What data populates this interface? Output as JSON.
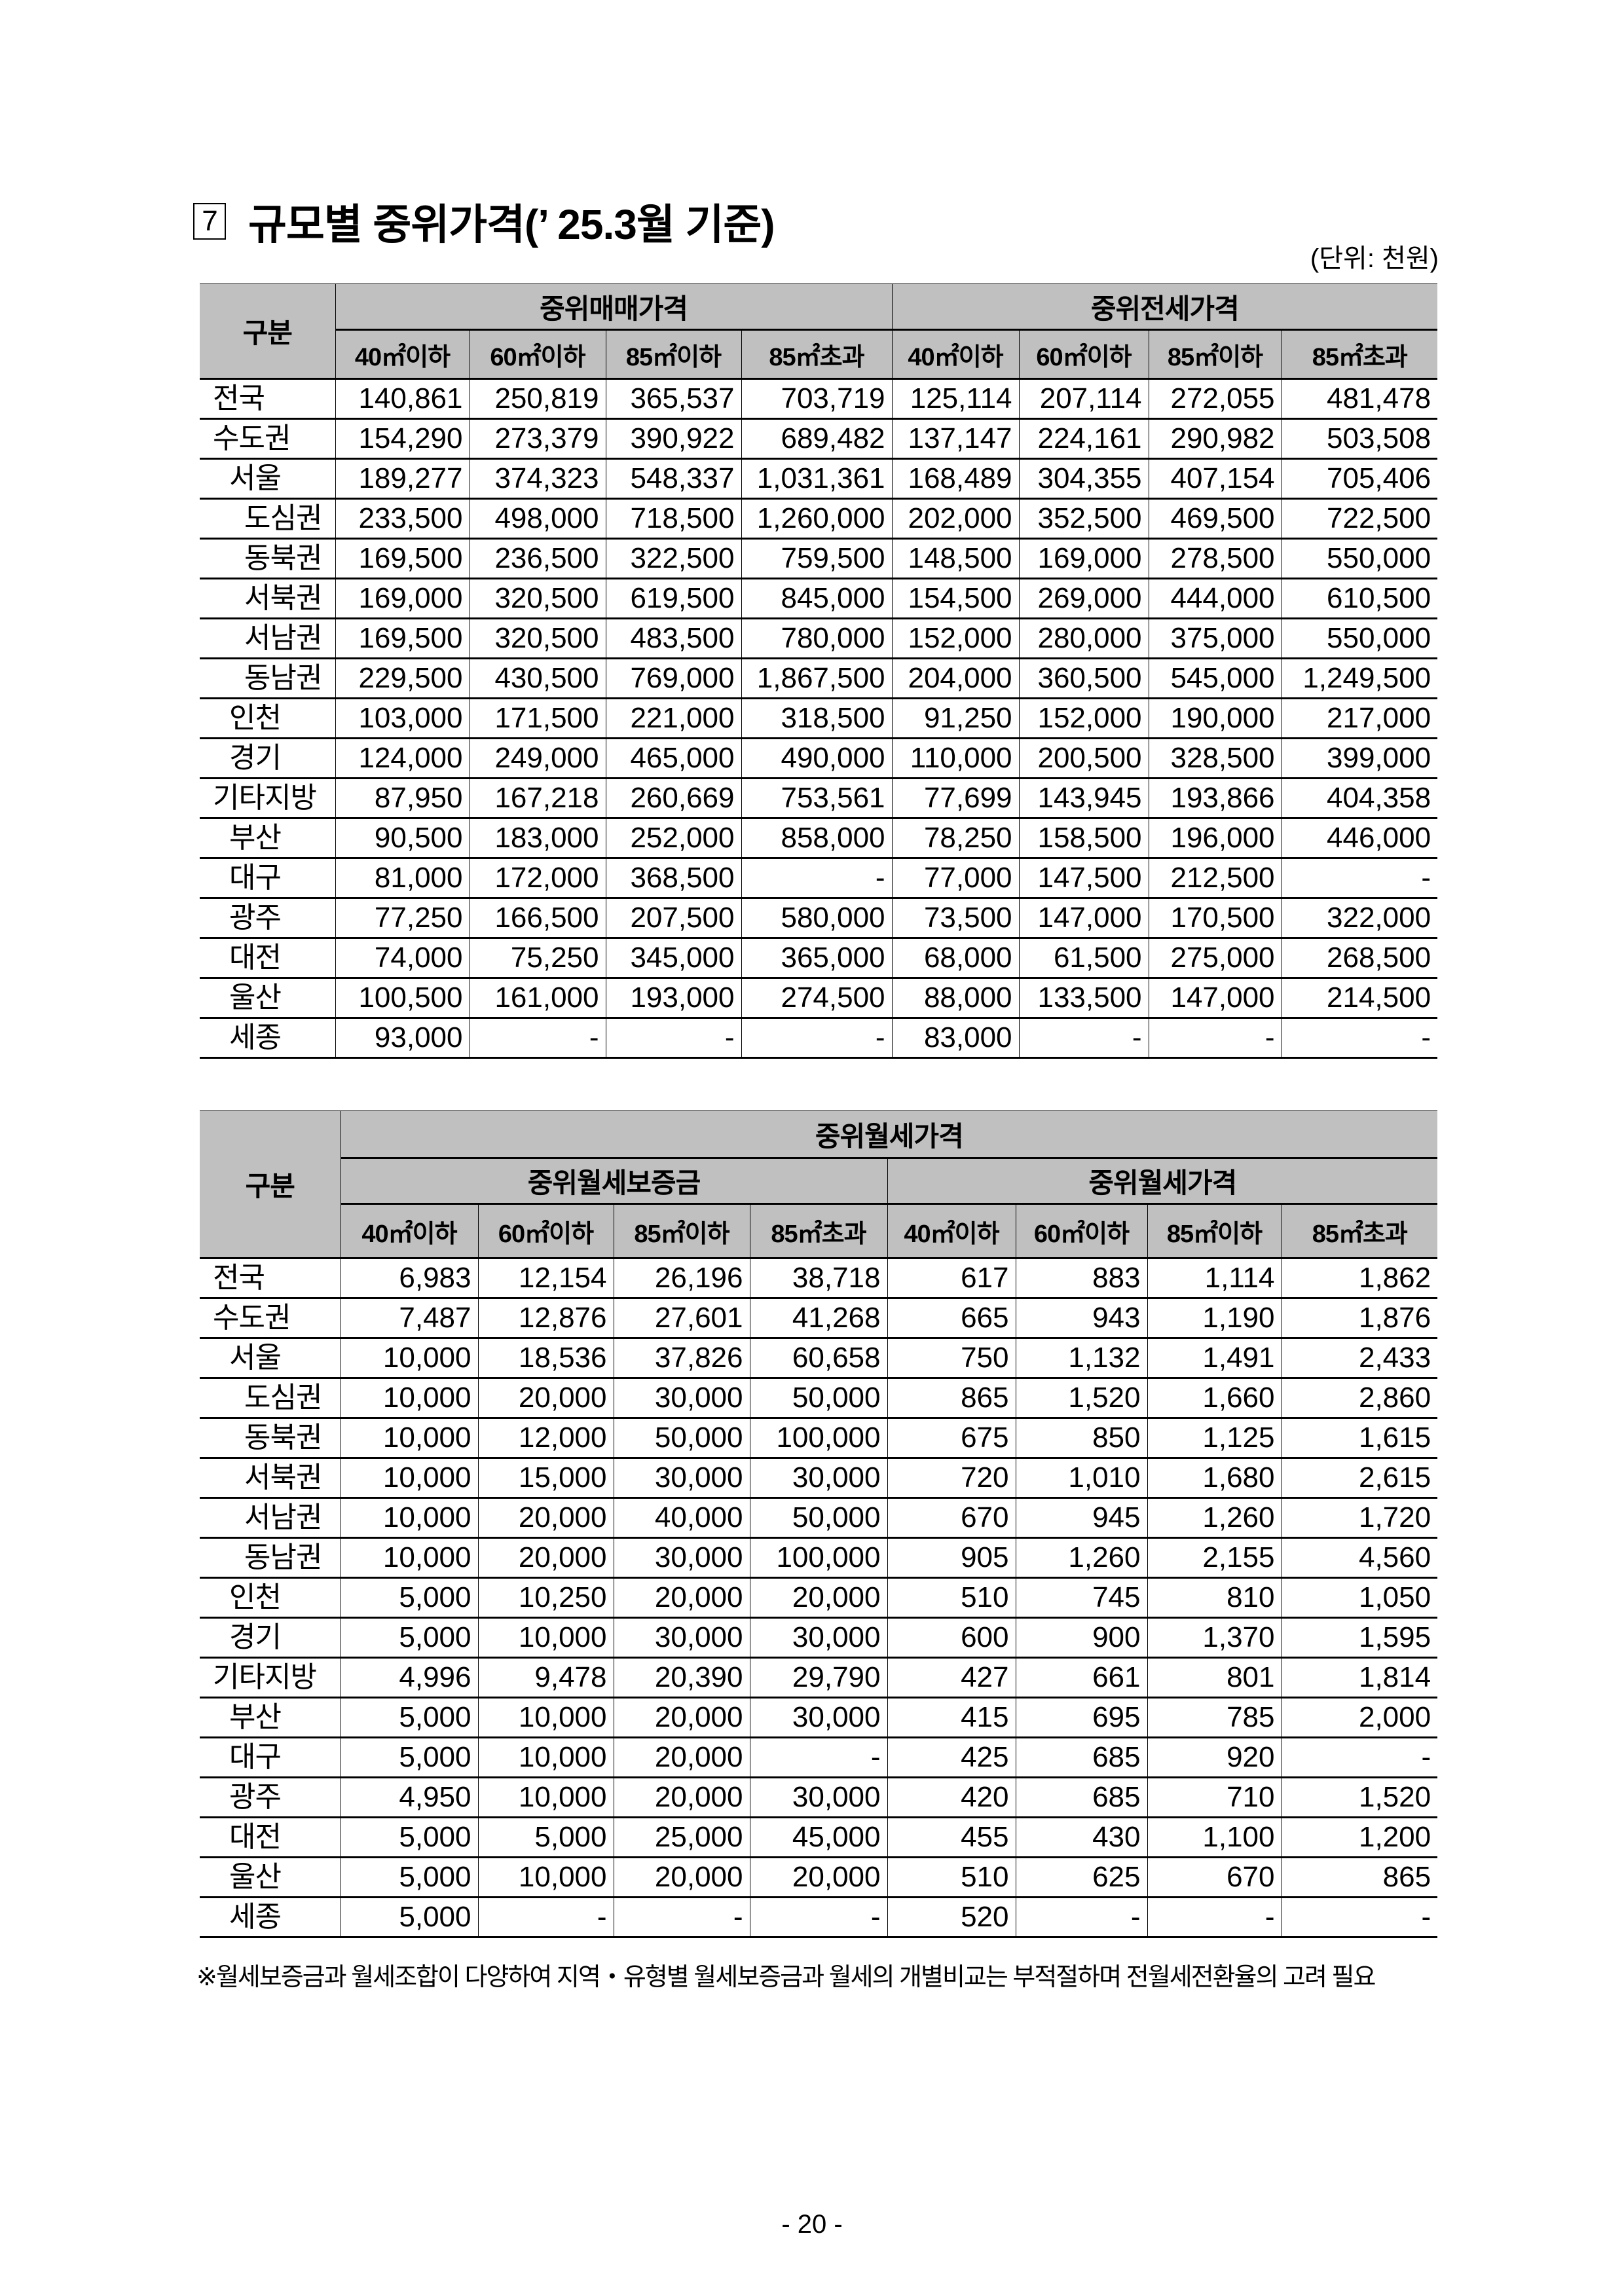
{
  "title": {
    "number": "7",
    "text": "규모별 중위가격(’ 25.3월 기준)"
  },
  "unit": "(단위: 천원)",
  "size_columns": [
    "40㎡이하",
    "60㎡이하",
    "85㎡이하",
    "85㎡초과"
  ],
  "table1": {
    "corner": "구분",
    "groups": [
      "중위매매가격",
      "중위전세가격"
    ],
    "rows": [
      {
        "region": "전국",
        "values": [
          "140,861",
          "250,819",
          "365,537",
          "703,719",
          "125,114",
          "207,114",
          "272,055",
          "481,478"
        ]
      },
      {
        "region": "수도권",
        "values": [
          "154,290",
          "273,379",
          "390,922",
          "689,482",
          "137,147",
          "224,161",
          "290,982",
          "503,508"
        ]
      },
      {
        "region": "서울",
        "values": [
          "189,277",
          "374,323",
          "548,337",
          "1,031,361",
          "168,489",
          "304,355",
          "407,154",
          "705,406"
        ]
      },
      {
        "region": "도심권",
        "values": [
          "233,500",
          "498,000",
          "718,500",
          "1,260,000",
          "202,000",
          "352,500",
          "469,500",
          "722,500"
        ]
      },
      {
        "region": "동북권",
        "values": [
          "169,500",
          "236,500",
          "322,500",
          "759,500",
          "148,500",
          "169,000",
          "278,500",
          "550,000"
        ]
      },
      {
        "region": "서북권",
        "values": [
          "169,000",
          "320,500",
          "619,500",
          "845,000",
          "154,500",
          "269,000",
          "444,000",
          "610,500"
        ]
      },
      {
        "region": "서남권",
        "values": [
          "169,500",
          "320,500",
          "483,500",
          "780,000",
          "152,000",
          "280,000",
          "375,000",
          "550,000"
        ]
      },
      {
        "region": "동남권",
        "values": [
          "229,500",
          "430,500",
          "769,000",
          "1,867,500",
          "204,000",
          "360,500",
          "545,000",
          "1,249,500"
        ]
      },
      {
        "region": "인천",
        "values": [
          "103,000",
          "171,500",
          "221,000",
          "318,500",
          "91,250",
          "152,000",
          "190,000",
          "217,000"
        ]
      },
      {
        "region": "경기",
        "values": [
          "124,000",
          "249,000",
          "465,000",
          "490,000",
          "110,000",
          "200,500",
          "328,500",
          "399,000"
        ]
      },
      {
        "region": "기타지방",
        "values": [
          "87,950",
          "167,218",
          "260,669",
          "753,561",
          "77,699",
          "143,945",
          "193,866",
          "404,358"
        ]
      },
      {
        "region": "부산",
        "values": [
          "90,500",
          "183,000",
          "252,000",
          "858,000",
          "78,250",
          "158,500",
          "196,000",
          "446,000"
        ]
      },
      {
        "region": "대구",
        "values": [
          "81,000",
          "172,000",
          "368,500",
          "-",
          "77,000",
          "147,500",
          "212,500",
          "-"
        ]
      },
      {
        "region": "광주",
        "values": [
          "77,250",
          "166,500",
          "207,500",
          "580,000",
          "73,500",
          "147,000",
          "170,500",
          "322,000"
        ]
      },
      {
        "region": "대전",
        "values": [
          "74,000",
          "75,250",
          "345,000",
          "365,000",
          "68,000",
          "61,500",
          "275,000",
          "268,500"
        ]
      },
      {
        "region": "울산",
        "values": [
          "100,500",
          "161,000",
          "193,000",
          "274,500",
          "88,000",
          "133,500",
          "147,000",
          "214,500"
        ]
      },
      {
        "region": "세종",
        "values": [
          "93,000",
          "-",
          "-",
          "-",
          "83,000",
          "-",
          "-",
          "-"
        ]
      }
    ]
  },
  "table2": {
    "corner": "구분",
    "top_group": "중위월세가격",
    "groups": [
      "중위월세보증금",
      "중위월세가격"
    ],
    "rows": [
      {
        "region": "전국",
        "values": [
          "6,983",
          "12,154",
          "26,196",
          "38,718",
          "617",
          "883",
          "1,114",
          "1,862"
        ]
      },
      {
        "region": "수도권",
        "values": [
          "7,487",
          "12,876",
          "27,601",
          "41,268",
          "665",
          "943",
          "1,190",
          "1,876"
        ]
      },
      {
        "region": "서울",
        "values": [
          "10,000",
          "18,536",
          "37,826",
          "60,658",
          "750",
          "1,132",
          "1,491",
          "2,433"
        ]
      },
      {
        "region": "도심권",
        "values": [
          "10,000",
          "20,000",
          "30,000",
          "50,000",
          "865",
          "1,520",
          "1,660",
          "2,860"
        ]
      },
      {
        "region": "동북권",
        "values": [
          "10,000",
          "12,000",
          "50,000",
          "100,000",
          "675",
          "850",
          "1,125",
          "1,615"
        ]
      },
      {
        "region": "서북권",
        "values": [
          "10,000",
          "15,000",
          "30,000",
          "30,000",
          "720",
          "1,010",
          "1,680",
          "2,615"
        ]
      },
      {
        "region": "서남권",
        "values": [
          "10,000",
          "20,000",
          "40,000",
          "50,000",
          "670",
          "945",
          "1,260",
          "1,720"
        ]
      },
      {
        "region": "동남권",
        "values": [
          "10,000",
          "20,000",
          "30,000",
          "100,000",
          "905",
          "1,260",
          "2,155",
          "4,560"
        ]
      },
      {
        "region": "인천",
        "values": [
          "5,000",
          "10,250",
          "20,000",
          "20,000",
          "510",
          "745",
          "810",
          "1,050"
        ]
      },
      {
        "region": "경기",
        "values": [
          "5,000",
          "10,000",
          "30,000",
          "30,000",
          "600",
          "900",
          "1,370",
          "1,595"
        ]
      },
      {
        "region": "기타지방",
        "values": [
          "4,996",
          "9,478",
          "20,390",
          "29,790",
          "427",
          "661",
          "801",
          "1,814"
        ]
      },
      {
        "region": "부산",
        "values": [
          "5,000",
          "10,000",
          "20,000",
          "30,000",
          "415",
          "695",
          "785",
          "2,000"
        ]
      },
      {
        "region": "대구",
        "values": [
          "5,000",
          "10,000",
          "20,000",
          "-",
          "425",
          "685",
          "920",
          "-"
        ]
      },
      {
        "region": "광주",
        "values": [
          "4,950",
          "10,000",
          "20,000",
          "30,000",
          "420",
          "685",
          "710",
          "1,520"
        ]
      },
      {
        "region": "대전",
        "values": [
          "5,000",
          "5,000",
          "25,000",
          "45,000",
          "455",
          "430",
          "1,100",
          "1,200"
        ]
      },
      {
        "region": "울산",
        "values": [
          "5,000",
          "10,000",
          "20,000",
          "20,000",
          "510",
          "625",
          "670",
          "865"
        ]
      },
      {
        "region": "세종",
        "values": [
          "5,000",
          "-",
          "-",
          "-",
          "520",
          "-",
          "-",
          "-"
        ]
      }
    ]
  },
  "footnote": "※월세보증금과 월세조합이 다양하여 지역・유형별 월세보증금과 월세의 개별비교는 부적절하며 전월세전환율의 고려 필요",
  "page_number": "- 20 -",
  "colors": {
    "header_bg": "#c0c0c0",
    "border": "#000000"
  }
}
